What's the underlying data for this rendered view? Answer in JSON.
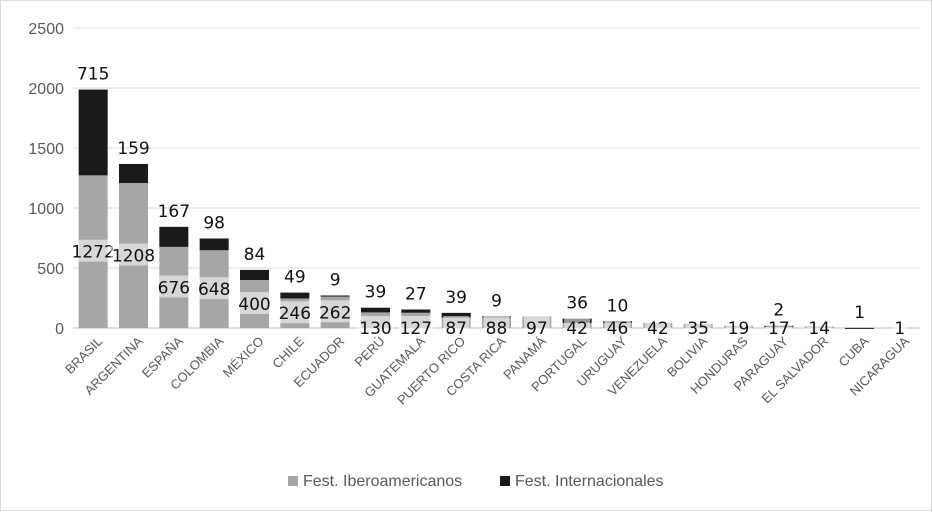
{
  "chart_data": {
    "type": "bar",
    "stacked": true,
    "categories": [
      "BRASIL",
      "ARGENTINA",
      "ESPAÑA",
      "COLOMBIA",
      "MÉXICO",
      "CHILE",
      "ECUADOR",
      "PERÚ",
      "GUATEMALA",
      "PUERTO RICO",
      "COSTA RICA",
      "PANAMÁ",
      "PORTUGAL",
      "URUGUAY",
      "VENEZUELA",
      "BOLIVIA",
      "HONDURAS",
      "PARAGUAY",
      "EL SALVADOR",
      "CUBA",
      "NICARAGUA"
    ],
    "series": [
      {
        "name": "Fest. Iberoamericanos",
        "color": "#a6a6a6",
        "values": [
          1272,
          1208,
          676,
          648,
          400,
          246,
          262,
          130,
          127,
          87,
          88,
          97,
          42,
          46,
          42,
          35,
          19,
          17,
          14,
          0,
          1
        ]
      },
      {
        "name": "Fest. Internacionales",
        "color": "#1a1a1a",
        "values": [
          715,
          159,
          167,
          98,
          84,
          49,
          9,
          39,
          27,
          39,
          9,
          0,
          36,
          10,
          0,
          0,
          0,
          2,
          0,
          1,
          0
        ]
      }
    ],
    "ylim": [
      0,
      2500
    ],
    "yticks": [
      0,
      500,
      1000,
      1500,
      2000,
      2500
    ],
    "grid": true,
    "legend": "bottom",
    "data_labels": {
      "iberoamericanos": [
        "1272",
        "1208",
        "676",
        "648",
        "400",
        "246",
        "262",
        "130",
        "127",
        "87",
        "88",
        "97",
        "42",
        "46",
        "42",
        "35",
        "19",
        "17",
        "14",
        "",
        "1"
      ],
      "internacionales": [
        "715",
        "159",
        "167",
        "98",
        "84",
        "49",
        "9",
        "39",
        "27",
        "39",
        "9",
        "",
        "36",
        "10",
        "",
        "",
        "",
        "2",
        "",
        "1",
        ""
      ]
    }
  }
}
